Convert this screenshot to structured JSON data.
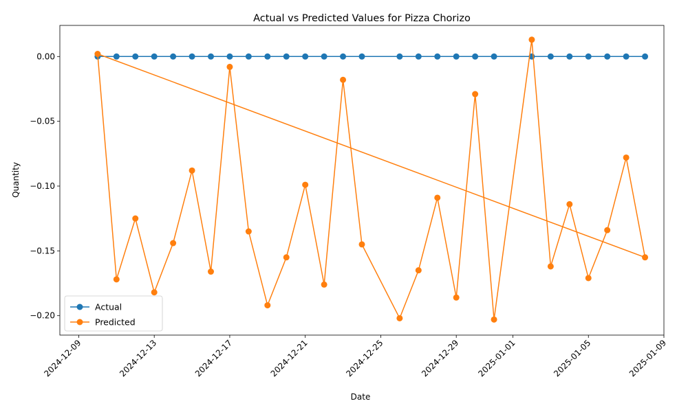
{
  "chart_data": {
    "type": "line",
    "title": "Actual vs Predicted Values for Pizza Chorizo",
    "xlabel": "Date",
    "ylabel": "Quantity",
    "x_axis_type": "date",
    "xlim": [
      "2024-12-08",
      "2025-01-09"
    ],
    "ylim": [
      -0.215,
      0.024
    ],
    "x_ticks": [
      "2024-12-09",
      "2024-12-13",
      "2024-12-17",
      "2024-12-21",
      "2024-12-25",
      "2024-12-29",
      "2025-01-01",
      "2025-01-05",
      "2025-01-09"
    ],
    "y_ticks": [
      0.0,
      -0.05,
      -0.1,
      -0.15,
      -0.2
    ],
    "y_tick_labels": [
      "0.00",
      "−0.05",
      "−0.10",
      "−0.15",
      "−0.20"
    ],
    "grid": false,
    "legend_position": "lower-left",
    "series": [
      {
        "name": "Actual",
        "color": "#1f77b4",
        "marker": "circle",
        "points": [
          [
            "2024-12-10",
            0.0
          ],
          [
            "2024-12-11",
            0.0
          ],
          [
            "2024-12-12",
            0.0
          ],
          [
            "2024-12-13",
            0.0
          ],
          [
            "2024-12-14",
            0.0
          ],
          [
            "2024-12-15",
            0.0
          ],
          [
            "2024-12-16",
            0.0
          ],
          [
            "2024-12-17",
            0.0
          ],
          [
            "2024-12-18",
            0.0
          ],
          [
            "2024-12-19",
            0.0
          ],
          [
            "2024-12-20",
            0.0
          ],
          [
            "2024-12-21",
            0.0
          ],
          [
            "2024-12-22",
            0.0
          ],
          [
            "2024-12-23",
            0.0
          ],
          [
            "2024-12-24",
            0.0
          ],
          [
            "2024-12-26",
            0.0
          ],
          [
            "2024-12-27",
            0.0
          ],
          [
            "2024-12-28",
            0.0
          ],
          [
            "2024-12-29",
            0.0
          ],
          [
            "2024-12-30",
            0.0
          ],
          [
            "2024-12-31",
            0.0
          ],
          [
            "2025-01-02",
            0.0
          ],
          [
            "2025-01-03",
            0.0
          ],
          [
            "2025-01-04",
            0.0
          ],
          [
            "2025-01-05",
            0.0
          ],
          [
            "2025-01-06",
            0.0
          ],
          [
            "2025-01-07",
            0.0
          ],
          [
            "2025-01-08",
            0.0
          ]
        ]
      },
      {
        "name": "Predicted",
        "color": "#ff7f0e",
        "marker": "circle",
        "points": [
          [
            "2024-12-10",
            0.002
          ],
          [
            "2024-12-11",
            -0.172
          ],
          [
            "2024-12-12",
            -0.125
          ],
          [
            "2024-12-13",
            -0.182
          ],
          [
            "2024-12-14",
            -0.144
          ],
          [
            "2024-12-15",
            -0.088
          ],
          [
            "2024-12-16",
            -0.166
          ],
          [
            "2024-12-17",
            -0.008
          ],
          [
            "2024-12-18",
            -0.135
          ],
          [
            "2024-12-19",
            -0.192
          ],
          [
            "2024-12-20",
            -0.155
          ],
          [
            "2024-12-21",
            -0.099
          ],
          [
            "2024-12-22",
            -0.176
          ],
          [
            "2024-12-23",
            -0.018
          ],
          [
            "2024-12-24",
            -0.145
          ],
          [
            "2024-12-26",
            -0.202
          ],
          [
            "2024-12-27",
            -0.165
          ],
          [
            "2024-12-28",
            -0.109
          ],
          [
            "2024-12-29",
            -0.186
          ],
          [
            "2024-12-30",
            -0.029
          ],
          [
            "2024-12-31",
            -0.203
          ],
          [
            "2025-01-02",
            0.013
          ],
          [
            "2025-01-03",
            -0.162
          ],
          [
            "2025-01-04",
            -0.114
          ],
          [
            "2025-01-05",
            -0.171
          ],
          [
            "2025-01-06",
            -0.134
          ],
          [
            "2025-01-07",
            -0.078
          ],
          [
            "2025-01-08",
            -0.155
          ]
        ],
        "extra_segment": [
          [
            "2024-12-10",
            0.002
          ],
          [
            "2025-01-08",
            -0.155
          ]
        ]
      }
    ]
  }
}
